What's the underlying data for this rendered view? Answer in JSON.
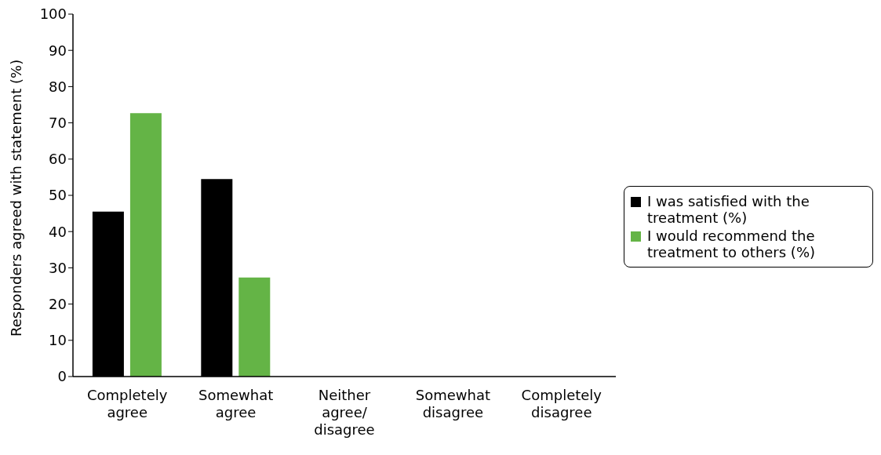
{
  "chart_data": {
    "type": "bar",
    "ylabel": "Responders agreed with statement (%)",
    "categories": [
      "Completely agree",
      "Somewhat agree",
      "Neither agree/disagree",
      "Somewhat disagree",
      "Completely disagree"
    ],
    "series": [
      {
        "name": "I was satisfied with the treatment (%)",
        "color": "#000000",
        "values": [
          45.5,
          54.5,
          0,
          0,
          0
        ]
      },
      {
        "name": "I would recommend the treatment to others (%)",
        "color": "#64b446",
        "values": [
          72.7,
          27.3,
          0,
          0,
          0
        ]
      }
    ],
    "ylim": [
      0,
      100
    ],
    "yticks": [
      0,
      10,
      20,
      30,
      40,
      50,
      60,
      70,
      80,
      90,
      100
    ],
    "grid": false,
    "legend": "right"
  }
}
